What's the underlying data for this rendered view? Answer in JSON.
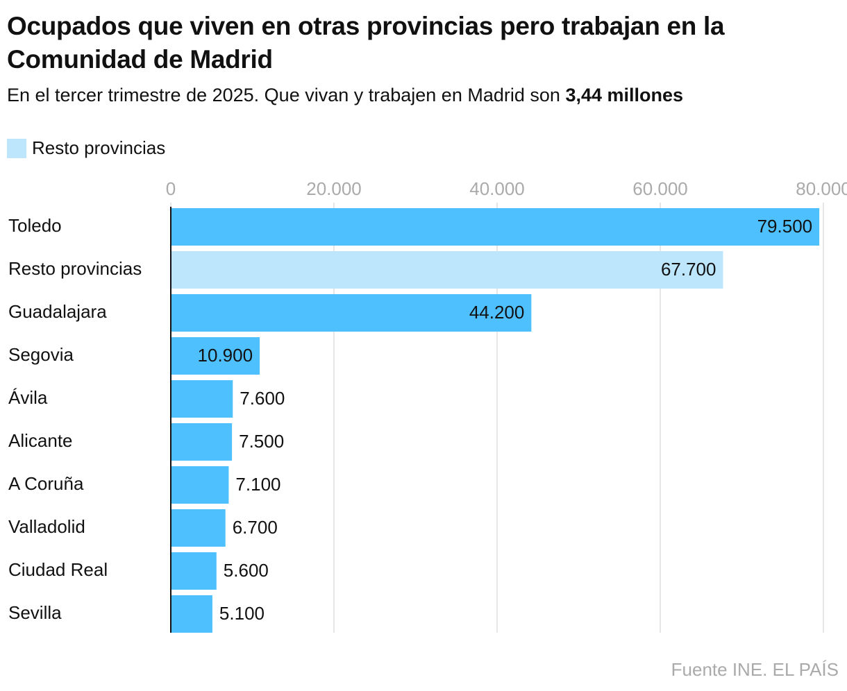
{
  "chart_data": {
    "type": "bar",
    "orientation": "horizontal",
    "title": "Ocupados que viven en otras provincias pero trabajan en la Comunidad de Madrid",
    "subtitle": "En el tercer trimestre de 2025. Que vivan y trabajen en Madrid son",
    "subtitle_bold": "3,44 millones",
    "legend": {
      "label": "Resto provincias",
      "color": "#bde6fd"
    },
    "categories": [
      "Toledo",
      "Resto provincias",
      "Guadalajara",
      "Segovia",
      "Ávila",
      "Alicante",
      "A Coruña",
      "Valladolid",
      "Ciudad Real",
      "Sevilla"
    ],
    "values": [
      79500,
      67700,
      44200,
      10900,
      7600,
      7500,
      7100,
      6700,
      5600,
      5100
    ],
    "value_labels": [
      "79.500",
      "67.700",
      "44.200",
      "10.900",
      "7.600",
      "7.500",
      "7.100",
      "6.700",
      "5.600",
      "5.100"
    ],
    "colors": [
      "#4fc0fe",
      "#bde6fd",
      "#4fc0fe",
      "#4fc0fe",
      "#4fc0fe",
      "#4fc0fe",
      "#4fc0fe",
      "#4fc0fe",
      "#4fc0fe",
      "#4fc0fe"
    ],
    "xlim": [
      0,
      80000
    ],
    "xticks": [
      0,
      {
        "value": 20000,
        "label": "20.000"
      },
      {
        "value": 40000,
        "label": "40.000"
      },
      {
        "value": 60000,
        "label": "60.000"
      },
      {
        "value": 80000,
        "label": "80.000"
      }
    ],
    "grid": true,
    "source": "Fuente INE. EL PAÍS"
  }
}
